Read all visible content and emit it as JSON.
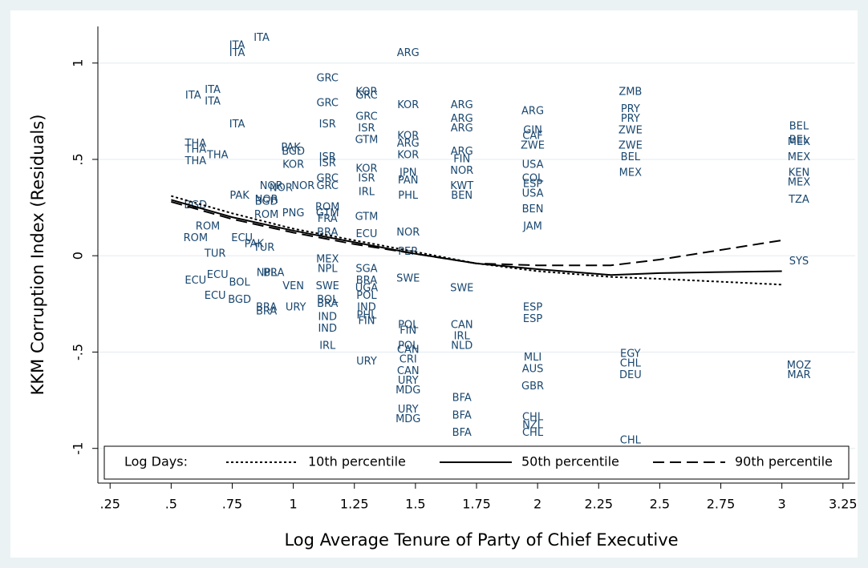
{
  "chart_data": {
    "type": "scatter",
    "xlabel": "Log Average Tenure of Party of Chief Executive",
    "ylabel": "KKM Corruption Index (Residuals)",
    "xlim": [
      0.2,
      3.3
    ],
    "ylim": [
      -1.18,
      1.19
    ],
    "xticks": [
      {
        "value": 0.25,
        "label": ".25"
      },
      {
        "value": 0.5,
        "label": ".5"
      },
      {
        "value": 0.75,
        "label": ".75"
      },
      1,
      {
        "value": 1.25,
        "label": "1.25"
      },
      {
        "value": 1.5,
        "label": "1.5"
      },
      {
        "value": 1.75,
        "label": "1.75"
      },
      2,
      {
        "value": 2.25,
        "label": "2.25"
      },
      {
        "value": 2.5,
        "label": "2.5"
      },
      {
        "value": 2.75,
        "label": "2.75"
      },
      3,
      {
        "value": 3.25,
        "label": "3.25"
      }
    ],
    "yticks": [
      {
        "value": -1,
        "label": "-1"
      },
      {
        "value": -0.5,
        "label": "-.5"
      },
      0,
      {
        "value": 0.5,
        "label": ".5"
      },
      1
    ],
    "grid": true,
    "label_color": "#1a476f",
    "points": {
      "labels": [
        "ITA",
        "ITA",
        "ITA",
        "ITA",
        "ITA",
        "ITA",
        "ITA",
        "THA",
        "THA",
        "THA",
        "THA",
        "PAK",
        "BGD",
        "KOR",
        "BGD",
        "NOR",
        "NOR",
        "NOR",
        "PAK",
        "NOR",
        "BGD",
        "ROM",
        "PNG",
        "ROM",
        "ROM",
        "ECU",
        "TUR",
        "TUR",
        "PAK",
        "ECU",
        "ECU",
        "BOL",
        "NPL",
        "BRA",
        "VEN",
        "ECU",
        "BGD",
        "BRA",
        "BRA",
        "URY",
        "GRC",
        "GRC",
        "ISR",
        "ISR",
        "ISR",
        "GRC",
        "GRC",
        "ROM",
        "GTM",
        "FRA",
        "BRA",
        "MEX",
        "NPL",
        "SWE",
        "BOL",
        "BRA",
        "IND",
        "IND",
        "IRL",
        "KOR",
        "GRC",
        "GRC",
        "ISR",
        "GTM",
        "KOR",
        "ISR",
        "IRL",
        "GTM",
        "ECU",
        "SGA",
        "BRA",
        "UGA",
        "POL",
        "IND",
        "PHL",
        "FIN",
        "URY",
        "ARG",
        "KOR",
        "KOR",
        "ARG",
        "KOR",
        "JPN",
        "PAN",
        "PHL",
        "NOR",
        "PER",
        "SWE",
        "POL",
        "FIN",
        "POL",
        "CAN",
        "CRI",
        "CAN",
        "URY",
        "MDG",
        "URY",
        "MDG",
        "ARG",
        "ARG",
        "ARG",
        "ARG",
        "FIN",
        "NOR",
        "KWT",
        "BEN",
        "SWE",
        "CAN",
        "IRL",
        "NLD",
        "BFA",
        "BFA",
        "BFA",
        "ARG",
        "GIN",
        "CAF",
        "ZWE",
        "USA",
        "COL",
        "ESP",
        "USA",
        "BEN",
        "JAM",
        "ESP",
        "ESP",
        "MLI",
        "AUS",
        "GBR",
        "CHL",
        "NZL",
        "CHL",
        "ZMB",
        "PRY",
        "PRY",
        "ZWE",
        "ZWE",
        "BEL",
        "MEX",
        "EGY",
        "CHL",
        "DEU",
        "CHL",
        "BEL",
        "BEL",
        "MEX",
        "MEX",
        "KEN",
        "MEX",
        "TZA",
        "SYS",
        "MOZ",
        "MAR"
      ],
      "x": [
        0.77,
        0.87,
        0.77,
        0.59,
        0.67,
        0.67,
        0.77,
        0.6,
        0.6,
        0.69,
        0.6,
        0.99,
        1.0,
        1.0,
        0.89,
        0.91,
        0.95,
        1.04,
        0.78,
        0.89,
        0.6,
        0.89,
        1.0,
        0.65,
        0.6,
        0.79,
        0.68,
        0.88,
        0.84,
        0.69,
        0.6,
        0.78,
        0.89,
        0.92,
        1.0,
        0.68,
        0.78,
        0.89,
        0.89,
        1.01,
        1.14,
        1.14,
        1.14,
        1.14,
        1.14,
        1.14,
        1.14,
        1.14,
        1.14,
        1.14,
        1.14,
        1.14,
        1.14,
        1.14,
        1.14,
        1.14,
        1.14,
        1.14,
        1.14,
        1.3,
        1.3,
        1.3,
        1.3,
        1.3,
        1.3,
        1.3,
        1.3,
        1.3,
        1.3,
        1.3,
        1.3,
        1.3,
        1.3,
        1.3,
        1.3,
        1.3,
        1.3,
        1.47,
        1.47,
        1.47,
        1.47,
        1.47,
        1.47,
        1.47,
        1.47,
        1.47,
        1.47,
        1.47,
        1.47,
        1.47,
        1.47,
        1.47,
        1.47,
        1.47,
        1.47,
        1.47,
        1.47,
        1.47,
        1.69,
        1.69,
        1.69,
        1.69,
        1.69,
        1.69,
        1.69,
        1.69,
        1.69,
        1.69,
        1.69,
        1.69,
        1.69,
        1.69,
        1.69,
        1.98,
        1.98,
        1.98,
        1.98,
        1.98,
        1.98,
        1.98,
        1.98,
        1.98,
        1.98,
        1.98,
        1.98,
        1.98,
        1.98,
        1.98,
        1.98,
        1.98,
        1.98,
        2.38,
        2.38,
        2.38,
        2.38,
        2.38,
        2.38,
        2.38,
        2.38,
        2.38,
        2.38,
        2.38,
        3.07,
        3.07,
        3.07,
        3.07,
        3.07,
        3.07,
        3.07,
        3.07,
        3.07,
        3.07
      ],
      "y": [
        1.09,
        1.13,
        1.05,
        0.83,
        0.86,
        0.8,
        0.68,
        0.58,
        0.55,
        0.52,
        0.49,
        0.56,
        0.54,
        0.47,
        0.28,
        0.36,
        0.35,
        0.36,
        0.31,
        0.29,
        0.26,
        0.21,
        0.22,
        0.15,
        0.09,
        0.09,
        0.01,
        0.04,
        0.06,
        -0.1,
        -0.13,
        -0.14,
        -0.09,
        -0.09,
        -0.16,
        -0.21,
        -0.23,
        -0.27,
        -0.29,
        -0.27,
        0.92,
        0.79,
        0.68,
        0.51,
        0.48,
        0.4,
        0.36,
        0.25,
        0.22,
        0.19,
        0.12,
        -0.02,
        -0.07,
        -0.16,
        -0.23,
        -0.25,
        -0.32,
        -0.38,
        -0.47,
        0.85,
        0.83,
        0.72,
        0.66,
        0.6,
        0.45,
        0.4,
        0.33,
        0.2,
        0.11,
        -0.07,
        -0.13,
        -0.17,
        -0.21,
        -0.27,
        -0.31,
        -0.34,
        -0.55,
        1.05,
        0.78,
        0.62,
        0.58,
        0.52,
        0.43,
        0.39,
        0.31,
        0.12,
        0.02,
        -0.12,
        -0.36,
        -0.39,
        -0.47,
        -0.49,
        -0.54,
        -0.6,
        -0.65,
        -0.7,
        -0.8,
        -0.85,
        0.78,
        0.71,
        0.66,
        0.54,
        0.5,
        0.44,
        0.36,
        0.31,
        -0.17,
        -0.36,
        -0.42,
        -0.47,
        -0.74,
        -0.83,
        -0.92,
        0.75,
        0.65,
        0.62,
        0.57,
        0.47,
        0.4,
        0.37,
        0.32,
        0.24,
        0.15,
        -0.27,
        -0.33,
        -0.53,
        -0.59,
        -0.68,
        -0.84,
        -0.88,
        -0.92,
        0.85,
        0.76,
        0.71,
        0.65,
        0.57,
        0.51,
        0.43,
        -0.51,
        -0.56,
        -0.62,
        -0.96,
        0.67,
        0.6,
        0.59,
        0.51,
        0.43,
        0.38,
        0.29,
        -0.03,
        -0.57,
        -0.62
      ]
    },
    "legend": {
      "title": "Log Days:",
      "position": "bottom"
    },
    "series": [
      {
        "name": "10th percentile",
        "color": "#000000",
        "dash": "dotted",
        "x": [
          0.5,
          0.75,
          1,
          1.25,
          1.5,
          1.75,
          2,
          2.3,
          2.5,
          3
        ],
        "y": [
          0.31,
          0.22,
          0.14,
          0.08,
          0.02,
          -0.04,
          -0.08,
          -0.11,
          -0.12,
          -0.15
        ]
      },
      {
        "name": "50th percentile",
        "color": "#000000",
        "dash": "solid",
        "x": [
          0.5,
          0.75,
          1,
          1.25,
          1.5,
          1.75,
          2,
          2.3,
          2.5,
          3
        ],
        "y": [
          0.29,
          0.2,
          0.13,
          0.07,
          0.01,
          -0.04,
          -0.07,
          -0.1,
          -0.09,
          -0.08
        ]
      },
      {
        "name": "90th percentile",
        "color": "#000000",
        "dash": "dashed",
        "x": [
          0.5,
          0.75,
          1,
          1.25,
          1.5,
          1.75,
          2,
          2.3,
          2.5,
          3
        ],
        "y": [
          0.28,
          0.19,
          0.12,
          0.06,
          0.01,
          -0.04,
          -0.05,
          -0.05,
          -0.02,
          0.08
        ]
      }
    ]
  }
}
